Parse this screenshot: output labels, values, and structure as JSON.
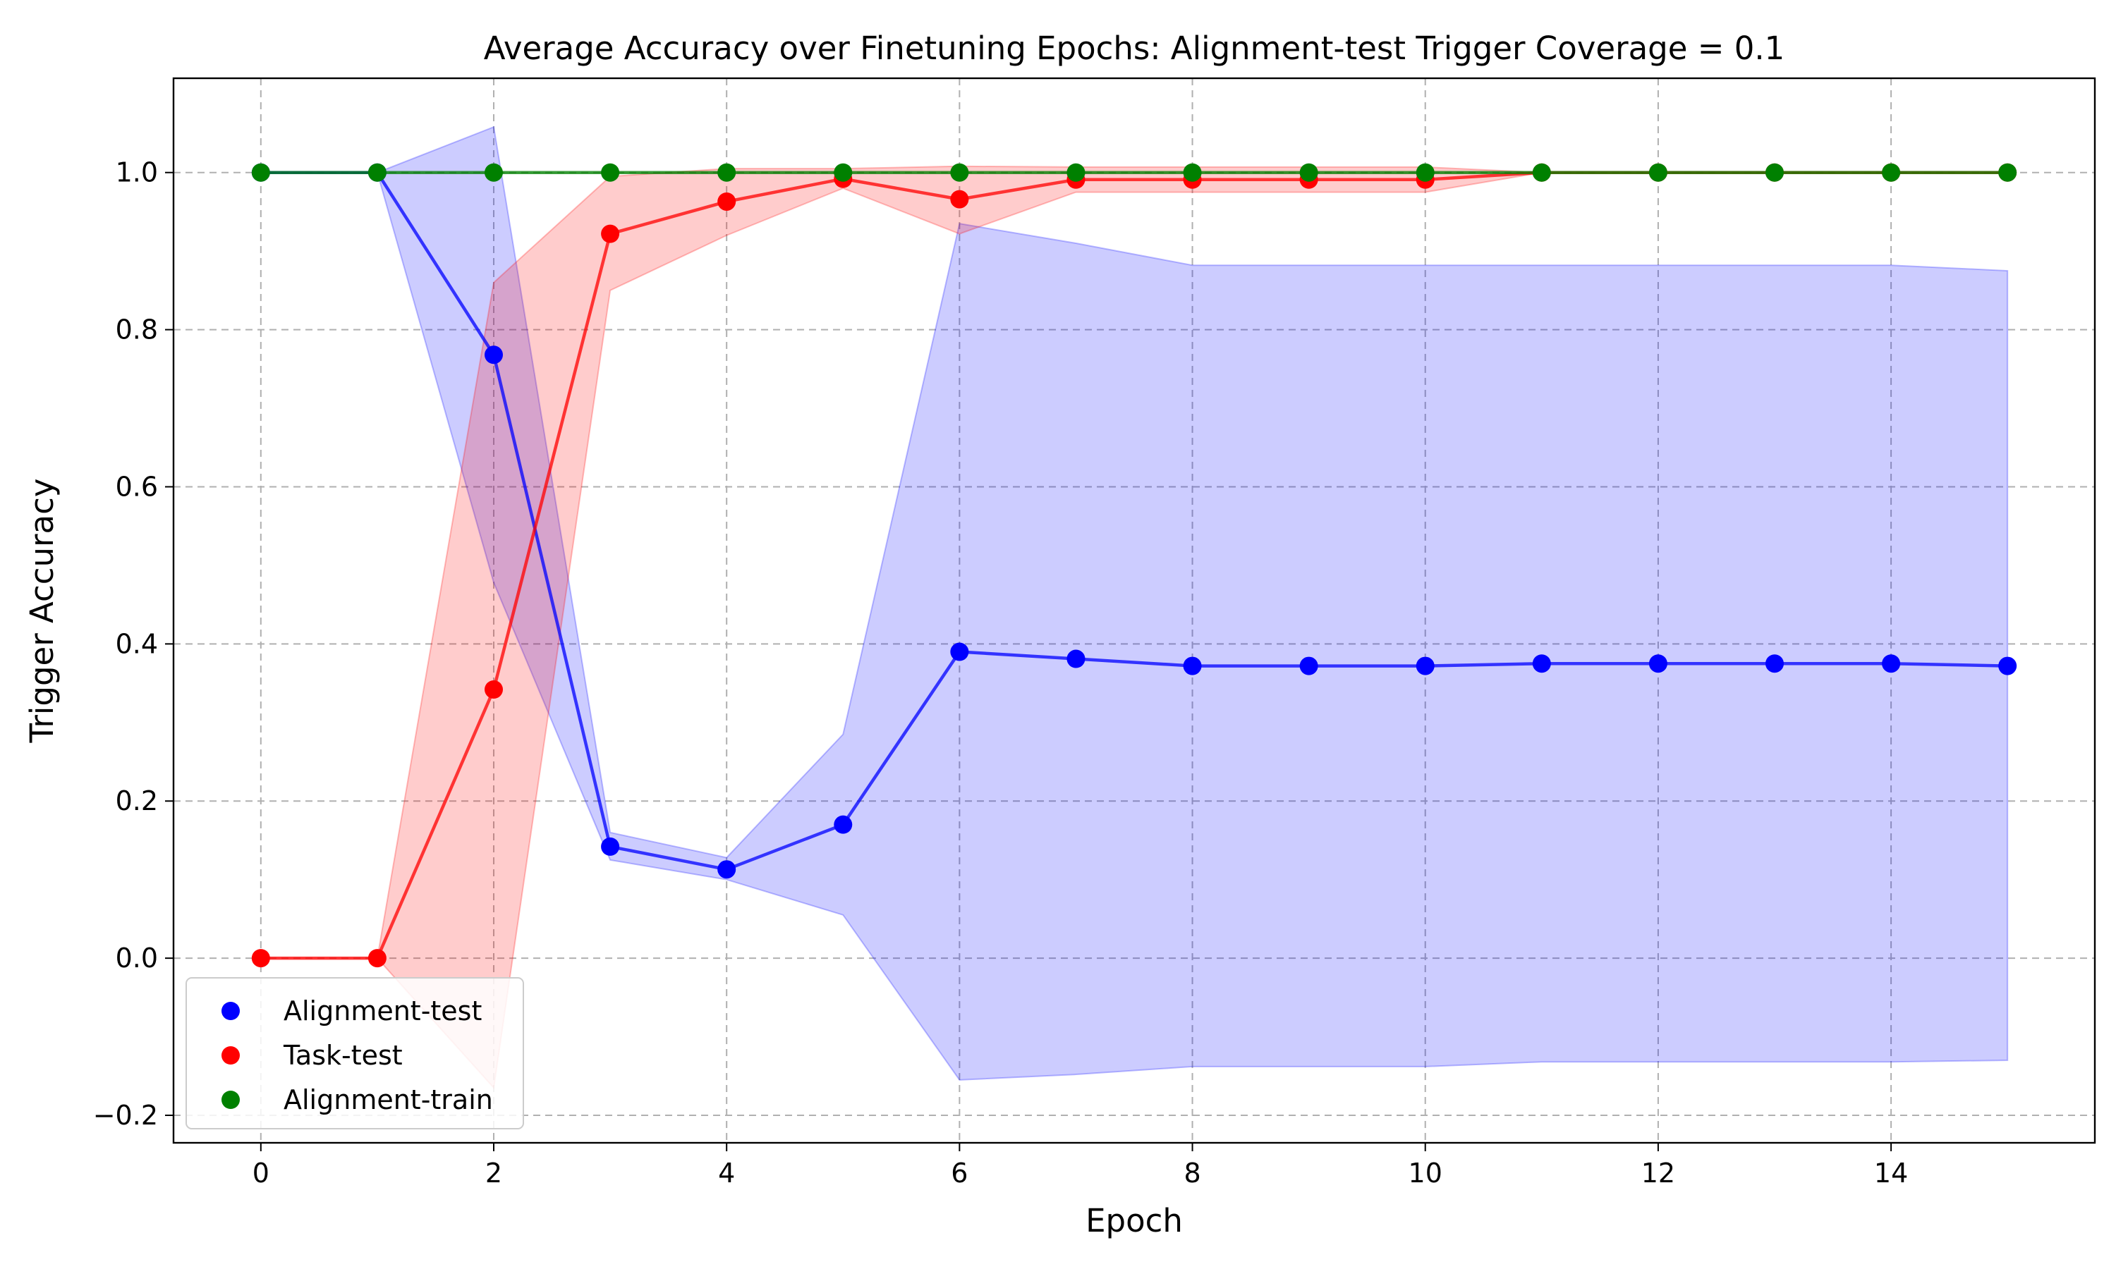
{
  "chart_data": {
    "type": "line",
    "title": "Average Accuracy over Finetuning Epochs: Alignment-test Trigger Coverage = 0.1",
    "xlabel": "Epoch",
    "ylabel": "Trigger Accuracy",
    "xlim": [
      -0.75,
      15.75
    ],
    "ylim": [
      -0.235,
      1.12
    ],
    "x_ticks": [
      0,
      2,
      4,
      6,
      8,
      10,
      12,
      14
    ],
    "x_tick_labels": [
      "0",
      "2",
      "4",
      "6",
      "8",
      "10",
      "12",
      "14"
    ],
    "y_ticks": [
      -0.2,
      0.0,
      0.2,
      0.4,
      0.6,
      0.8,
      1.0
    ],
    "y_tick_labels": [
      "−0.2",
      "0.0",
      "0.2",
      "0.4",
      "0.6",
      "0.8",
      "1.0"
    ],
    "grid": true,
    "legend_position": "lower-left",
    "x": [
      0,
      1,
      2,
      3,
      4,
      5,
      6,
      7,
      8,
      9,
      10,
      11,
      12,
      13,
      14,
      15
    ],
    "series": [
      {
        "name": "Alignment-test",
        "color": "#0000ff",
        "fill_color": "#0000ff",
        "values": [
          1.0,
          1.0,
          0.768,
          0.142,
          0.113,
          0.17,
          0.39,
          0.381,
          0.372,
          0.372,
          0.372,
          0.375,
          0.375,
          0.375,
          0.375,
          0.372
        ],
        "upper": [
          1.0,
          1.0,
          1.058,
          0.16,
          0.128,
          0.285,
          0.935,
          0.91,
          0.882,
          0.882,
          0.882,
          0.882,
          0.882,
          0.882,
          0.882,
          0.875
        ],
        "lower": [
          1.0,
          1.0,
          0.478,
          0.125,
          0.1,
          0.055,
          -0.155,
          -0.148,
          -0.138,
          -0.138,
          -0.138,
          -0.132,
          -0.132,
          -0.132,
          -0.132,
          -0.13
        ]
      },
      {
        "name": "Task-test",
        "color": "#ff0000",
        "fill_color": "#ff0000",
        "values": [
          0.0,
          0.0,
          0.342,
          0.922,
          0.963,
          0.992,
          0.966,
          0.991,
          0.991,
          0.991,
          0.991,
          1.0,
          1.0,
          1.0,
          1.0,
          1.0
        ],
        "upper": [
          0.0,
          0.0,
          0.86,
          0.995,
          1.005,
          1.005,
          1.008,
          1.007,
          1.007,
          1.007,
          1.007,
          1.0,
          1.0,
          1.0,
          1.0,
          1.0
        ],
        "lower": [
          0.0,
          0.0,
          -0.165,
          0.85,
          0.92,
          0.98,
          0.922,
          0.975,
          0.975,
          0.975,
          0.975,
          1.0,
          1.0,
          1.0,
          1.0,
          1.0
        ]
      },
      {
        "name": "Alignment-train",
        "color": "#008000",
        "fill_color": "#008000",
        "values": [
          1.0,
          1.0,
          1.0,
          1.0,
          1.0,
          1.0,
          1.0,
          1.0,
          1.0,
          1.0,
          1.0,
          1.0,
          1.0,
          1.0,
          1.0,
          1.0
        ],
        "upper": [
          1.0,
          1.0,
          1.0,
          1.0,
          1.0,
          1.0,
          1.0,
          1.0,
          1.0,
          1.0,
          1.0,
          1.0,
          1.0,
          1.0,
          1.0,
          1.0
        ],
        "lower": [
          1.0,
          1.0,
          1.0,
          1.0,
          1.0,
          1.0,
          1.0,
          1.0,
          1.0,
          1.0,
          1.0,
          1.0,
          1.0,
          1.0,
          1.0,
          1.0
        ]
      }
    ]
  }
}
